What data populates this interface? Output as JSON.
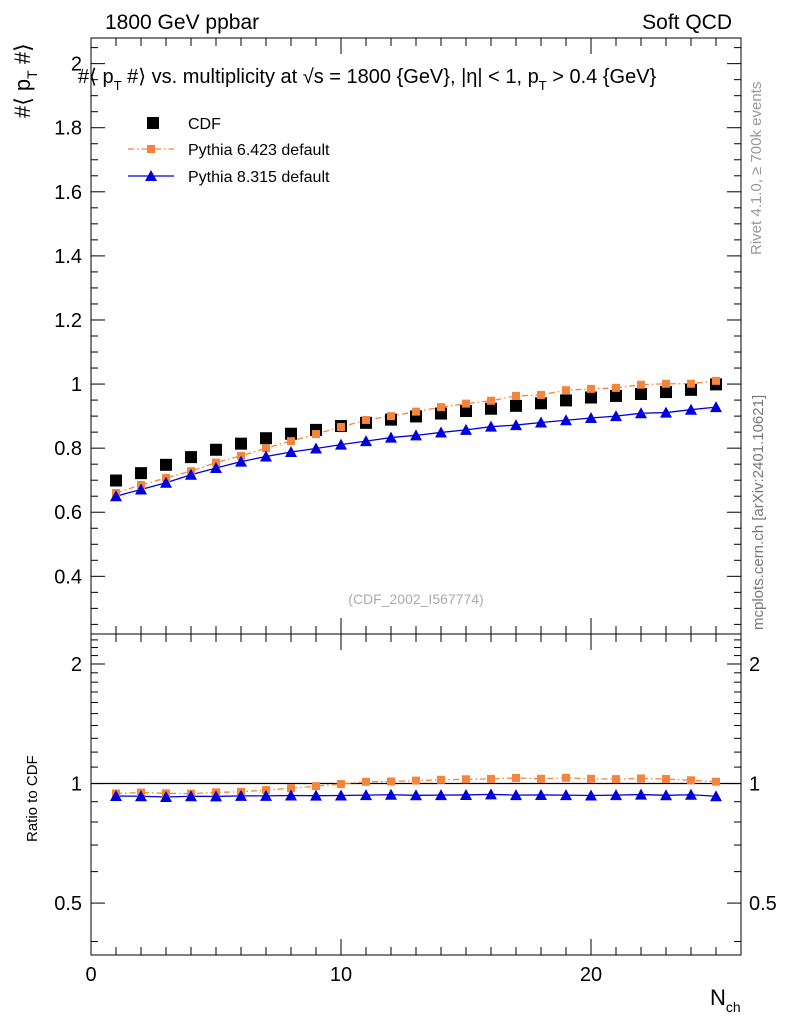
{
  "header": {
    "left_title": "1800 GeV ppbar",
    "right_title": "Soft QCD"
  },
  "side_labels": {
    "rivet": "Rivet 4.1.0, ≥ 700k events",
    "mcplots": "mcplots.cern.ch [arXiv:2401.10621]"
  },
  "chart_data": {
    "type": "scatter",
    "title": "#⟨ p_T #⟩ vs. multiplicity at √s = 1800 {GeV}, |η| < 1, p_T > 0.4 {GeV}",
    "title_parts": {
      "p1": "#⟨ p",
      "sub_t1": "T",
      "p2": " #⟩ vs. multiplicity at ",
      "sqrt": "√",
      "p3": "s = 1800 {GeV}, |η| < 1, p",
      "sub_t2": "T",
      "p4": " > 0.4 {GeV}"
    },
    "ylabel": {
      "main": "#⟨ p",
      "sub": "T",
      "tail": " #⟩"
    },
    "xlabel": {
      "main": "N",
      "sub": "ch"
    },
    "analysis_id": "(CDF_2002_I567774)",
    "x": [
      1,
      2,
      3,
      4,
      5,
      6,
      7,
      8,
      9,
      10,
      11,
      12,
      13,
      14,
      15,
      16,
      17,
      18,
      19,
      20,
      21,
      22,
      23,
      24,
      25
    ],
    "xlim": [
      0,
      26
    ],
    "ylim": [
      0.22,
      2.08
    ],
    "yticks": [
      0.4,
      0.6,
      0.8,
      1.0,
      1.2,
      1.4,
      1.6,
      1.8,
      2.0
    ],
    "ytick_labels": [
      "0.4",
      "0.6",
      "0.8",
      "1",
      "1.2",
      "1.4",
      "1.6",
      "1.8",
      "2"
    ],
    "xticks": [
      0,
      10,
      20
    ],
    "xtick_labels": [
      "0",
      "10",
      "20"
    ],
    "legend_position": "top-left",
    "series": [
      {
        "name": "CDF",
        "color": "#000000",
        "marker": "square",
        "line": "none",
        "values": [
          0.699,
          0.722,
          0.748,
          0.772,
          0.795,
          0.814,
          0.831,
          0.845,
          0.857,
          0.869,
          0.879,
          0.889,
          0.899,
          0.908,
          0.916,
          0.923,
          0.932,
          0.94,
          0.949,
          0.958,
          0.963,
          0.969,
          0.975,
          0.982,
          0.999
        ]
      },
      {
        "name": "Pythia 6.423 default",
        "color": "#f5843c",
        "marker": "square-small",
        "line": "dashdot",
        "values": [
          0.66,
          0.685,
          0.707,
          0.728,
          0.755,
          0.776,
          0.8,
          0.822,
          0.844,
          0.866,
          0.888,
          0.9,
          0.914,
          0.928,
          0.939,
          0.948,
          0.963,
          0.966,
          0.981,
          0.985,
          0.988,
          0.998,
          1.001,
          1.001,
          1.01
        ]
      },
      {
        "name": "Pythia 8.315 default",
        "color": "#0000dd",
        "marker": "triangle",
        "line": "solid",
        "values": [
          0.65,
          0.671,
          0.692,
          0.717,
          0.738,
          0.758,
          0.774,
          0.788,
          0.799,
          0.811,
          0.822,
          0.833,
          0.84,
          0.849,
          0.857,
          0.867,
          0.872,
          0.88,
          0.887,
          0.894,
          0.9,
          0.909,
          0.911,
          0.92,
          0.928
        ]
      }
    ],
    "ratio": {
      "ylabel": "Ratio to CDF",
      "ylim": [
        0.37,
        2.38
      ],
      "yticks": [
        0.5,
        1,
        2
      ],
      "ytick_labels": [
        "0.5",
        "1",
        "2"
      ],
      "series": [
        {
          "name": "Pythia 6.423 default",
          "values": [
            0.944,
            0.949,
            0.945,
            0.943,
            0.95,
            0.953,
            0.963,
            0.973,
            0.985,
            0.997,
            1.01,
            1.012,
            1.017,
            1.022,
            1.025,
            1.027,
            1.033,
            1.028,
            1.034,
            1.028,
            1.026,
            1.03,
            1.027,
            1.019,
            1.011
          ]
        },
        {
          "name": "Pythia 8.315 default",
          "values": [
            0.93,
            0.929,
            0.925,
            0.929,
            0.928,
            0.931,
            0.931,
            0.933,
            0.932,
            0.933,
            0.935,
            0.937,
            0.934,
            0.935,
            0.936,
            0.939,
            0.935,
            0.936,
            0.935,
            0.933,
            0.935,
            0.938,
            0.934,
            0.937,
            0.929
          ]
        }
      ]
    }
  }
}
